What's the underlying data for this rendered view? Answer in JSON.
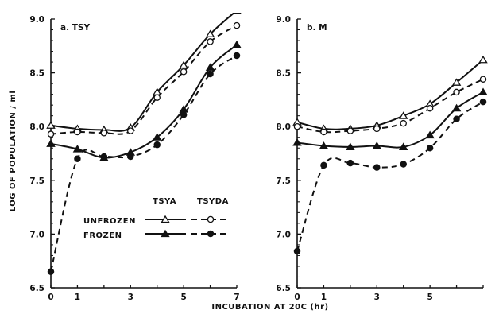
{
  "chart_data": [
    {
      "type": "line",
      "title": "a. TSY",
      "xlim": [
        0,
        7
      ],
      "ylim": [
        6.5,
        9.0
      ],
      "x_ticks": [
        0,
        1,
        3,
        5,
        7
      ],
      "y_ticks": [
        "6.5",
        "7.0",
        "7.5",
        "8.0",
        "8.5",
        "9.0"
      ],
      "series": [
        {
          "name": "UNFROZEN TSYA",
          "style": "solid",
          "marker": "open-triangle",
          "x": [
            0,
            1,
            2,
            3,
            4,
            5,
            6,
            7
          ],
          "y": [
            8.01,
            7.98,
            7.97,
            7.99,
            8.32,
            8.57,
            8.86,
            9.08
          ]
        },
        {
          "name": "UNFROZEN TSYDA",
          "style": "dashed",
          "marker": "open-circle",
          "x": [
            0,
            1,
            2,
            3,
            4,
            5,
            6,
            7
          ],
          "y": [
            7.93,
            7.95,
            7.94,
            7.96,
            8.27,
            8.51,
            8.79,
            8.94
          ]
        },
        {
          "name": "FROZEN TSYA",
          "style": "solid",
          "marker": "filled-triangle",
          "x": [
            0,
            1,
            2,
            3,
            4,
            5,
            6,
            7
          ],
          "y": [
            7.84,
            7.79,
            7.71,
            7.76,
            7.9,
            8.16,
            8.55,
            8.76
          ]
        },
        {
          "name": "FROZEN TSYDA",
          "style": "dashed",
          "marker": "filled-circle",
          "x": [
            0,
            1,
            2,
            3,
            4,
            5,
            6,
            7
          ],
          "y": [
            6.65,
            7.7,
            7.72,
            7.72,
            7.83,
            8.11,
            8.49,
            8.66
          ]
        }
      ]
    },
    {
      "type": "line",
      "title": "b. M",
      "xlim": [
        0,
        7
      ],
      "ylim": [
        6.5,
        9.0
      ],
      "x_ticks": [
        0,
        1,
        3,
        5
      ],
      "y_ticks": [
        "6.5",
        "7.0",
        "7.5",
        "8.0",
        "8.5",
        "9.0"
      ],
      "series": [
        {
          "name": "UNFROZEN TSYA",
          "style": "solid",
          "marker": "open-triangle",
          "x": [
            0,
            1,
            2,
            3,
            4,
            5,
            6,
            7
          ],
          "y": [
            8.04,
            7.98,
            7.98,
            8.01,
            8.1,
            8.21,
            8.41,
            8.62
          ]
        },
        {
          "name": "UNFROZEN TSYDA",
          "style": "dashed",
          "marker": "open-circle",
          "x": [
            0,
            1,
            2,
            3,
            4,
            5,
            6,
            7
          ],
          "y": [
            8.0,
            7.95,
            7.96,
            7.98,
            8.03,
            8.17,
            8.32,
            8.44
          ]
        },
        {
          "name": "FROZEN TSYA",
          "style": "solid",
          "marker": "filled-triangle",
          "x": [
            0,
            1,
            2,
            3,
            4,
            5,
            6,
            7
          ],
          "y": [
            7.85,
            7.82,
            7.81,
            7.82,
            7.81,
            7.92,
            8.17,
            8.32
          ]
        },
        {
          "name": "FROZEN TSYDA",
          "style": "dashed",
          "marker": "filled-circle",
          "x": [
            0,
            1,
            2,
            3,
            4,
            5,
            6,
            7
          ],
          "y": [
            6.84,
            7.64,
            7.66,
            7.62,
            7.65,
            7.8,
            8.07,
            8.23
          ]
        }
      ]
    }
  ],
  "labels": {
    "ylabel": "LOG OF POPULATION / ml",
    "xlabel": "INCUBATION AT 20C (hr)"
  },
  "legend": {
    "col_tsya": "TSYA",
    "col_tsyda": "TSYDA",
    "row_unfrozen": "UNFROZEN",
    "row_frozen": "FROZEN"
  }
}
